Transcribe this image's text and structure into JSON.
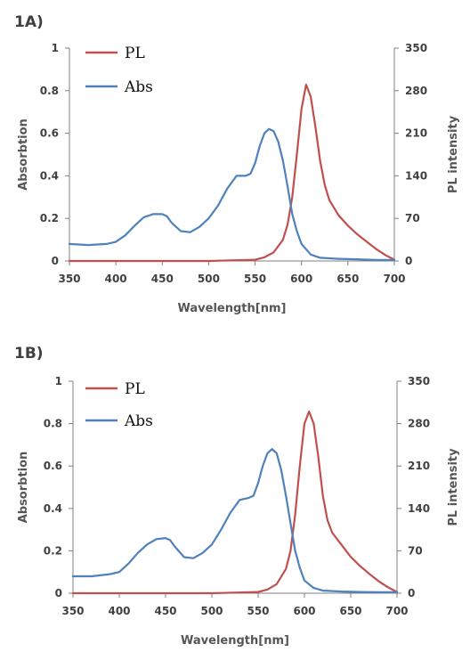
{
  "chart_data": [
    {
      "panel_label": "1A)",
      "type": "line",
      "xlabel": "Wavelength[nm]",
      "ylabel": "Absorbtion",
      "y2label": "PL intensity",
      "xlim": [
        350,
        700
      ],
      "ylim": [
        0,
        1
      ],
      "y2lim": [
        0,
        350
      ],
      "x_ticks": [
        "350",
        "400",
        "450",
        "500",
        "550",
        "600",
        "650",
        "700"
      ],
      "y_ticks": [
        "0",
        "0.2",
        "0.4",
        "0.6",
        "0.8",
        "1"
      ],
      "y2_ticks": [
        "0",
        "70",
        "140",
        "210",
        "280",
        "350"
      ],
      "legend_position": "top-left",
      "series": [
        {
          "name": "PL",
          "axis": "right",
          "color": "#c0504d",
          "x": [
            350,
            500,
            550,
            560,
            570,
            580,
            585,
            590,
            595,
            600,
            605,
            610,
            615,
            620,
            625,
            630,
            640,
            650,
            660,
            670,
            680,
            690,
            700
          ],
          "y": [
            0,
            0,
            2,
            6,
            14,
            35,
            60,
            105,
            175,
            250,
            290,
            270,
            220,
            165,
            125,
            100,
            75,
            58,
            44,
            32,
            20,
            10,
            2
          ]
        },
        {
          "name": "Abs",
          "axis": "left",
          "color": "#4f81bd",
          "x": [
            350,
            370,
            390,
            400,
            410,
            420,
            430,
            440,
            450,
            455,
            460,
            470,
            480,
            490,
            500,
            510,
            520,
            530,
            540,
            545,
            550,
            555,
            560,
            565,
            570,
            575,
            580,
            585,
            590,
            595,
            600,
            610,
            620,
            640,
            660,
            680,
            700
          ],
          "y": [
            0.08,
            0.075,
            0.08,
            0.09,
            0.12,
            0.165,
            0.205,
            0.22,
            0.22,
            0.21,
            0.18,
            0.14,
            0.135,
            0.16,
            0.2,
            0.26,
            0.34,
            0.4,
            0.4,
            0.41,
            0.46,
            0.54,
            0.6,
            0.62,
            0.61,
            0.56,
            0.47,
            0.35,
            0.22,
            0.14,
            0.08,
            0.03,
            0.015,
            0.01,
            0.008,
            0.005,
            0.005
          ]
        }
      ]
    },
    {
      "panel_label": "1B)",
      "type": "line",
      "xlabel": "Wavelength[nm]",
      "ylabel": "Absorbtion",
      "y2label": "PL intensity",
      "xlim": [
        350,
        700
      ],
      "ylim": [
        0,
        1
      ],
      "y2lim": [
        0,
        350
      ],
      "x_ticks": [
        "350",
        "400",
        "450",
        "500",
        "550",
        "600",
        "650",
        "700"
      ],
      "y_ticks": [
        "0",
        "0.2",
        "0.4",
        "0.6",
        "0.8",
        "1"
      ],
      "y2_ticks": [
        "0",
        "70",
        "140",
        "210",
        "280",
        "350"
      ],
      "legend_position": "top-left",
      "series": [
        {
          "name": "PL",
          "axis": "right",
          "color": "#c0504d",
          "x": [
            350,
            500,
            550,
            560,
            570,
            580,
            585,
            590,
            595,
            600,
            605,
            610,
            615,
            620,
            625,
            630,
            640,
            650,
            660,
            670,
            680,
            690,
            700
          ],
          "y": [
            0,
            0,
            2,
            6,
            15,
            40,
            70,
            130,
            210,
            280,
            300,
            280,
            225,
            160,
            120,
            100,
            80,
            60,
            45,
            32,
            20,
            10,
            2
          ]
        },
        {
          "name": "Abs",
          "axis": "left",
          "color": "#4f81bd",
          "x": [
            350,
            370,
            390,
            400,
            410,
            420,
            430,
            440,
            450,
            455,
            460,
            470,
            480,
            490,
            500,
            510,
            520,
            530,
            540,
            545,
            550,
            555,
            560,
            565,
            570,
            575,
            580,
            585,
            590,
            595,
            600,
            610,
            620,
            640,
            660,
            680,
            700
          ],
          "y": [
            0.08,
            0.08,
            0.09,
            0.1,
            0.14,
            0.19,
            0.23,
            0.255,
            0.26,
            0.25,
            0.22,
            0.17,
            0.165,
            0.19,
            0.23,
            0.3,
            0.38,
            0.44,
            0.45,
            0.46,
            0.52,
            0.6,
            0.66,
            0.68,
            0.66,
            0.58,
            0.46,
            0.33,
            0.2,
            0.12,
            0.06,
            0.025,
            0.012,
            0.008,
            0.006,
            0.005,
            0.005
          ]
        }
      ]
    }
  ]
}
